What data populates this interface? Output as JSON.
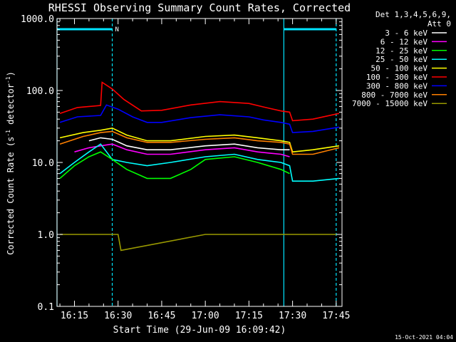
{
  "chart_data": {
    "type": "line",
    "title": "RHESSI Observing Summary Count Rates, Corrected",
    "xlabel": "Start Time (29-Jun-09 16:09:42)",
    "ylabel_main": "Corrected Count Rate (s",
    "ylabel_exp1": "-1",
    "ylabel_mid": " detector",
    "ylabel_exp2": "-1",
    "ylabel_end": ")",
    "footer": "15-Oct-2021 04:04",
    "yscale": "log",
    "ylim": [
      0.1,
      1000
    ],
    "xlim": [
      "16:09:42",
      "17:47:30"
    ],
    "y_ticks": [
      "1000.0",
      "100.0",
      "10.0",
      "1.0",
      "0.1"
    ],
    "x_ticks": [
      "16:15",
      "16:30",
      "16:45",
      "17:00",
      "17:15",
      "17:30",
      "17:45"
    ],
    "legend": {
      "placement": "outside-right",
      "header_line1": "Det 1,3,4,5,6,9,",
      "header_line2": "Att 0",
      "entries": [
        {
          "label": "3 - 6 keV",
          "color": "#ffffff"
        },
        {
          "label": "6 - 12 keV",
          "color": "#ff00ff"
        },
        {
          "label": "12 - 25 keV",
          "color": "#00ff00"
        },
        {
          "label": "25 - 50 keV",
          "color": "#00ffff"
        },
        {
          "label": "50 - 100 keV",
          "color": "#ffff00"
        },
        {
          "label": "100 - 300 keV",
          "color": "#ff0000"
        },
        {
          "label": "300 - 800 keV",
          "color": "#0000ff"
        },
        {
          "label": "800 - 7000 keV",
          "color": "#ff8000"
        },
        {
          "label": "7000 - 15000 keV",
          "color": "#999900"
        }
      ]
    },
    "annotations": {
      "flag_label": "N",
      "night_intervals": [
        [
          "16:09:42",
          "16:28:00"
        ],
        [
          "17:27:30",
          "17:45:30"
        ]
      ],
      "night_color": "#00e5ff"
    },
    "series": [
      {
        "color": "#ff0000",
        "x": [
          "16:10",
          "16:16",
          "16:24",
          "16:24.5",
          "16:28",
          "16:32",
          "16:38",
          "16:45",
          "16:55",
          "17:05",
          "17:15",
          "17:20",
          "17:26",
          "17:29",
          "17:30",
          "17:37",
          "17:46"
        ],
        "y": [
          48,
          58,
          62,
          130,
          105,
          75,
          52,
          53,
          63,
          70,
          66,
          59,
          52,
          50,
          38,
          40,
          48
        ]
      },
      {
        "color": "#0000ff",
        "x": [
          "16:10",
          "16:16",
          "16:24",
          "16:26",
          "16:30",
          "16:35",
          "16:40",
          "16:45",
          "16:55",
          "17:05",
          "17:15",
          "17:20",
          "17:26",
          "17:29",
          "17:30",
          "17:37",
          "17:46"
        ],
        "y": [
          36,
          43,
          45,
          63,
          55,
          43,
          36,
          36,
          42,
          46,
          43,
          39,
          36,
          34,
          26,
          27,
          31
        ]
      },
      {
        "color": "#ffff00",
        "x": [
          "16:10",
          "16:18",
          "16:24",
          "16:28",
          "16:33",
          "16:40",
          "16:48",
          "17:00",
          "17:10",
          "17:18",
          "17:26",
          "17:29",
          "17:30",
          "17:37",
          "17:46"
        ],
        "y": [
          22,
          26,
          28,
          30,
          24,
          20,
          20,
          23,
          24,
          22,
          20,
          19,
          14,
          15,
          17
        ]
      },
      {
        "color": "#ff8000",
        "x": [
          "16:10",
          "16:18",
          "16:24",
          "16:28",
          "16:33",
          "16:40",
          "16:48",
          "17:00",
          "17:10",
          "17:18",
          "17:26",
          "17:29",
          "17:30",
          "17:37",
          "17:46"
        ],
        "y": [
          18,
          23,
          26,
          27,
          22,
          19,
          19,
          21,
          22,
          20,
          19,
          18,
          13,
          13,
          16
        ]
      },
      {
        "color": "#ffffff",
        "x": [
          "16:20",
          "16:24",
          "16:28",
          "16:33",
          "16:40",
          "16:48",
          "17:00",
          "17:10",
          "17:18",
          "17:26",
          "17:29"
        ],
        "y": [
          20,
          22,
          21,
          17,
          15,
          15,
          17,
          18,
          16,
          15,
          15
        ]
      },
      {
        "color": "#ff00ff",
        "x": [
          "16:15",
          "16:20",
          "16:24",
          "16:28",
          "16:33",
          "16:40",
          "16:48",
          "17:00",
          "17:10",
          "17:18",
          "17:26",
          "17:29"
        ],
        "y": [
          14,
          16,
          17,
          18,
          15,
          13,
          13,
          15,
          16,
          14,
          13,
          12
        ]
      },
      {
        "color": "#00ffff",
        "x": [
          "16:10",
          "16:15",
          "16:20",
          "16:24",
          "16:28",
          "16:33",
          "16:40",
          "16:48",
          "17:00",
          "17:10",
          "17:18",
          "17:26",
          "17:29",
          "17:30",
          "17:37",
          "17:46"
        ],
        "y": [
          7,
          10,
          14,
          18,
          11,
          10,
          9,
          10,
          12,
          13,
          11,
          10,
          9,
          5.5,
          5.5,
          6
        ]
      },
      {
        "color": "#00ff00",
        "x": [
          "16:10",
          "16:15",
          "16:20",
          "16:24",
          "16:28",
          "16:33",
          "16:40",
          "16:48",
          "16:55",
          "17:00",
          "17:10",
          "17:18",
          "17:26",
          "17:29"
        ],
        "y": [
          6,
          9,
          12,
          14,
          11,
          8,
          6,
          6,
          8,
          11,
          12,
          10,
          8,
          7
        ]
      },
      {
        "color": "#999900",
        "x": [
          "16:10",
          "16:15",
          "16:20",
          "16:24",
          "16:28",
          "16:30",
          "16:31",
          "17:00",
          "17:08",
          "17:29",
          "17:45"
        ],
        "y": [
          1,
          1,
          1,
          1,
          1,
          1,
          0.6,
          1,
          1,
          1,
          1
        ]
      }
    ]
  }
}
